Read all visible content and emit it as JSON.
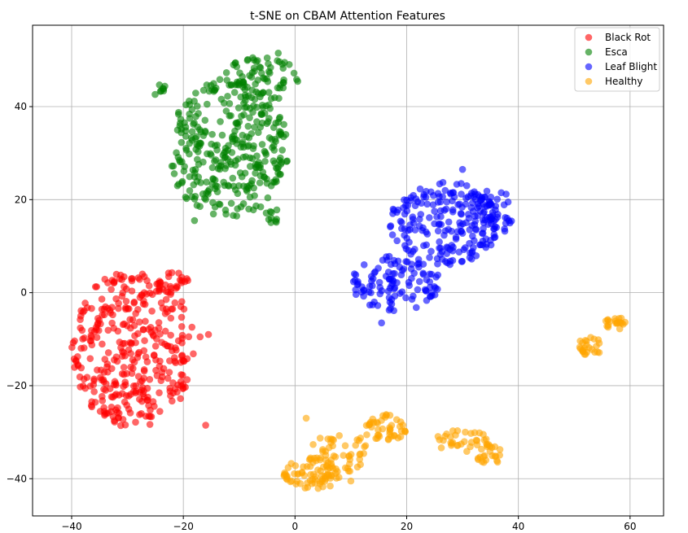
{
  "chart_data": {
    "type": "scatter",
    "title": "t-SNE on CBAM Attention Features",
    "xlabel": "",
    "ylabel": "",
    "xlim": [
      -47,
      66
    ],
    "ylim": [
      -48,
      57.5
    ],
    "xticks": [
      -40,
      -20,
      0,
      20,
      40,
      60
    ],
    "yticks": [
      -40,
      -20,
      0,
      20,
      40
    ],
    "xtick_labels": [
      "−40",
      "−20",
      "0",
      "20",
      "40",
      "60"
    ],
    "ytick_labels": [
      "−40",
      "−20",
      "0",
      "20",
      "40"
    ],
    "grid": true,
    "legend_position": "top-right",
    "series": [
      {
        "name": "Black Rot",
        "color": "#ff0000",
        "clusters": [
          {
            "cx": -29,
            "cy": -12,
            "rx": 11,
            "ry": 17,
            "n": 360
          },
          {
            "cx": -22,
            "cy": 2,
            "rx": 3,
            "ry": 3,
            "n": 25
          }
        ],
        "points": [
          [
            -16,
            -28.5
          ],
          [
            -20,
            -20.5
          ],
          [
            -17,
            -9.5
          ],
          [
            -15.5,
            -9
          ]
        ]
      },
      {
        "name": "Esca",
        "color": "#008000",
        "clusters": [
          {
            "cx": -12,
            "cy": 31,
            "rx": 11,
            "ry": 15,
            "n": 330
          },
          {
            "cx": -6,
            "cy": 46,
            "rx": 7,
            "ry": 5,
            "n": 70
          },
          {
            "cx": -24,
            "cy": 43.5,
            "rx": 1.8,
            "ry": 1.2,
            "n": 8
          },
          {
            "cx": -4,
            "cy": 16.5,
            "rx": 1.5,
            "ry": 1.5,
            "n": 10
          }
        ],
        "points": [
          [
            -18,
            15.5
          ],
          [
            -3,
            51.5
          ]
        ]
      },
      {
        "name": "Leaf Blight",
        "color": "#0000ff",
        "clusters": [
          {
            "cx": 18,
            "cy": 2,
            "rx": 8,
            "ry": 6,
            "n": 110
          },
          {
            "cx": 27,
            "cy": 15,
            "rx": 10,
            "ry": 9,
            "n": 210
          },
          {
            "cx": 35,
            "cy": 17,
            "rx": 4,
            "ry": 6,
            "n": 40
          }
        ],
        "points": [
          [
            15.5,
            -6.5
          ],
          [
            38.5,
            15
          ],
          [
            30,
            26.5
          ]
        ]
      },
      {
        "name": "Healthy",
        "color": "#ffa500",
        "clusters": [
          {
            "cx": 3,
            "cy": -39,
            "rx": 5,
            "ry": 3.5,
            "n": 75
          },
          {
            "cx": 8,
            "cy": -34,
            "rx": 5,
            "ry": 5,
            "n": 45
          },
          {
            "cx": 16,
            "cy": -29,
            "rx": 4,
            "ry": 3,
            "n": 45
          },
          {
            "cx": 30,
            "cy": -32,
            "rx": 5,
            "ry": 2.5,
            "n": 35
          },
          {
            "cx": 35,
            "cy": -35,
            "rx": 2.5,
            "ry": 2,
            "n": 20
          },
          {
            "cx": 53,
            "cy": -11.5,
            "rx": 2.5,
            "ry": 2,
            "n": 25
          },
          {
            "cx": 57.5,
            "cy": -6.5,
            "rx": 2.5,
            "ry": 1.5,
            "n": 20
          }
        ],
        "points": [
          [
            2,
            -27
          ],
          [
            10,
            -40.5
          ]
        ]
      }
    ]
  }
}
